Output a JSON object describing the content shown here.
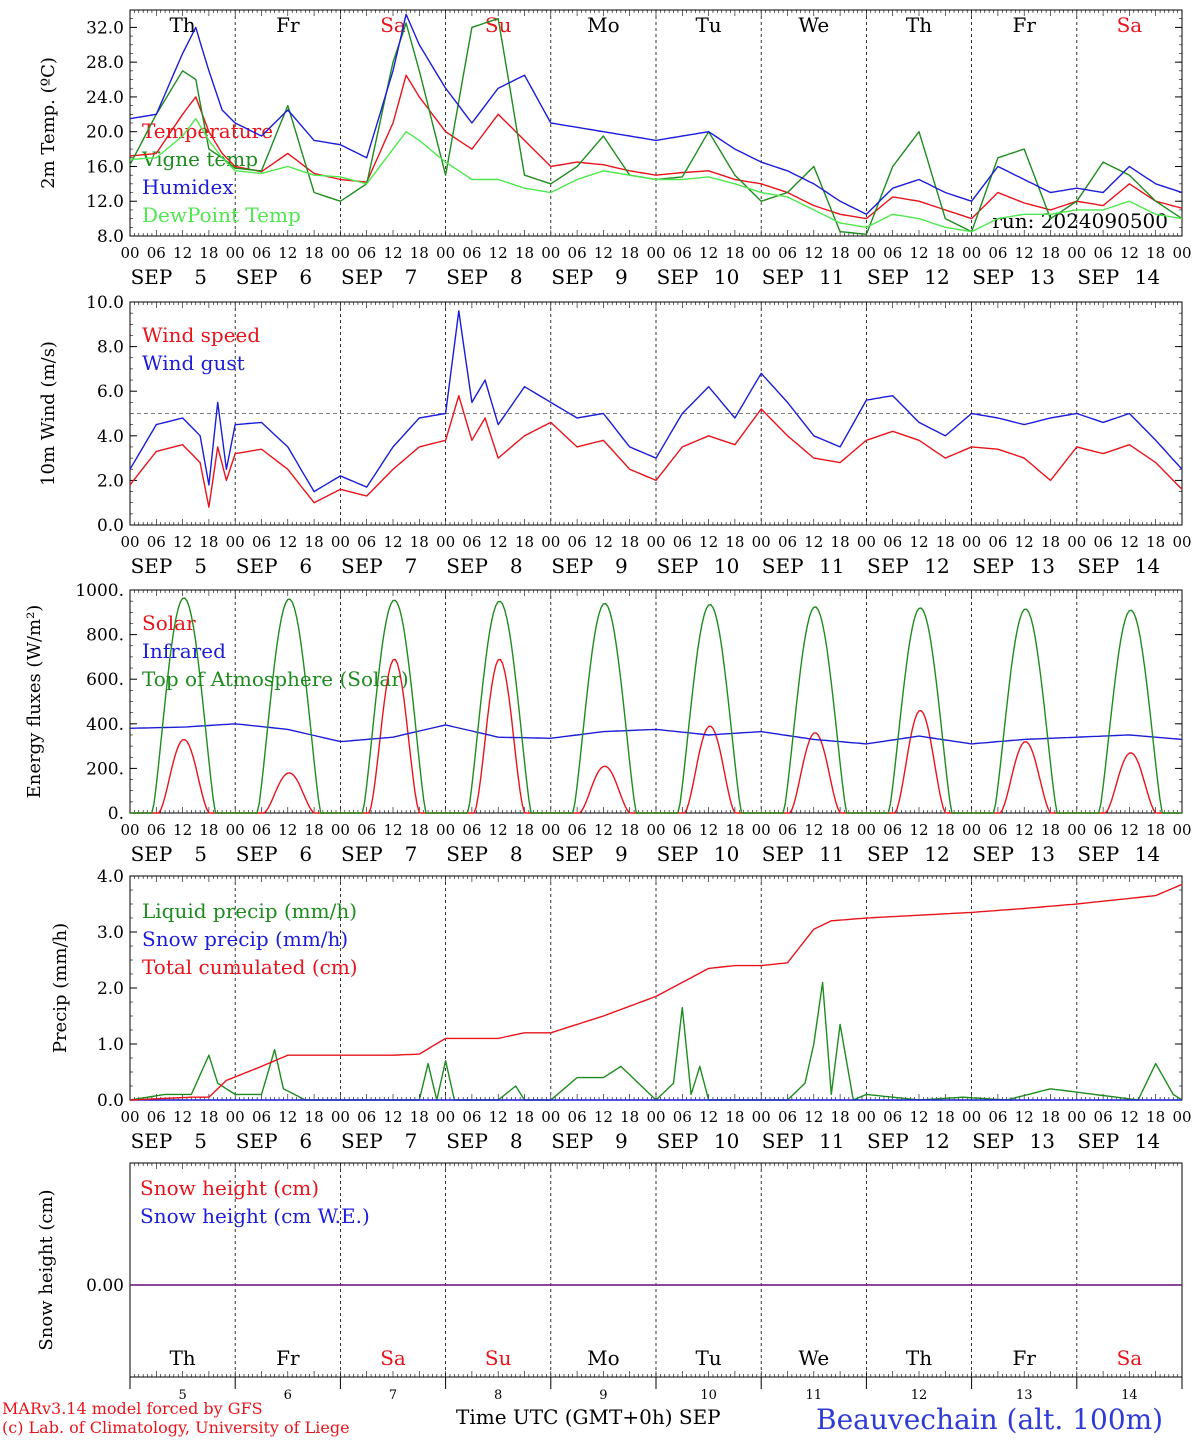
{
  "colors": {
    "red": "#e8141c",
    "green": "#1e8c1e",
    "blue": "#1c1cd9",
    "lightgreen": "#4ee84e",
    "purple": "#7a2d8c",
    "black": "#000000"
  },
  "days": [
    {
      "dow": "Th",
      "weekend": false,
      "month": "SEP",
      "date": "5"
    },
    {
      "dow": "Fr",
      "weekend": false,
      "month": "SEP",
      "date": "6"
    },
    {
      "dow": "Sa",
      "weekend": true,
      "month": "SEP",
      "date": "7"
    },
    {
      "dow": "Su",
      "weekend": true,
      "month": "SEP",
      "date": "8"
    },
    {
      "dow": "Mo",
      "weekend": false,
      "month": "SEP",
      "date": "9"
    },
    {
      "dow": "Tu",
      "weekend": false,
      "month": "SEP",
      "date": "10"
    },
    {
      "dow": "We",
      "weekend": false,
      "month": "SEP",
      "date": "11"
    },
    {
      "dow": "Th",
      "weekend": false,
      "month": "SEP",
      "date": "12"
    },
    {
      "dow": "Fr",
      "weekend": false,
      "month": "SEP",
      "date": "13"
    },
    {
      "dow": "Sa",
      "weekend": true,
      "month": "SEP",
      "date": "14"
    }
  ],
  "hour_labels": [
    "00",
    "06",
    "12",
    "18"
  ],
  "footer": {
    "model": "MARv3.14 model forced by GFS",
    "lab": "(c) Lab. of Climatology, University of Liege",
    "xlabel": "Time UTC (GMT+0h) SEP",
    "station": "Beauvechain (alt. 100m)"
  },
  "chart_data": [
    {
      "type": "line",
      "ylabel": "2m Temp. (ºC)",
      "ylim": [
        8,
        34
      ],
      "yticks": [
        "8.0",
        "12.0",
        "16.0",
        "20.0",
        "24.0",
        "28.0",
        "32.0"
      ],
      "ytick_values": [
        8,
        12,
        16,
        20,
        24,
        28,
        32
      ],
      "annotation": "run: 2024090500",
      "x_hours": [
        0,
        6,
        12,
        15,
        18,
        21,
        24,
        30,
        36,
        42,
        48,
        54,
        60,
        63,
        66,
        72,
        78,
        84,
        90,
        96,
        102,
        108,
        114,
        120,
        126,
        132,
        138,
        144,
        150,
        156,
        162,
        168,
        174,
        180,
        186,
        192,
        198,
        204,
        210,
        216,
        222,
        228,
        234,
        240
      ],
      "series": [
        {
          "name": "Temperature",
          "color": "red",
          "values": [
            17.2,
            17.5,
            22.0,
            24.0,
            20.0,
            17.5,
            16.0,
            15.4,
            17.5,
            15.2,
            14.5,
            14.2,
            21.0,
            26.5,
            24.0,
            20.0,
            18.0,
            22.0,
            19.0,
            16.0,
            16.5,
            16.2,
            15.5,
            15.0,
            15.3,
            15.5,
            14.5,
            14.0,
            13.0,
            11.5,
            10.5,
            10.0,
            12.5,
            12.0,
            11.0,
            10.0,
            13.0,
            11.8,
            11.0,
            12.0,
            11.5,
            14.0,
            12.0,
            11.2
          ]
        },
        {
          "name": "Vigne temp",
          "color": "green",
          "values": [
            16.2,
            22.0,
            27.0,
            26.0,
            18.0,
            17.0,
            15.8,
            15.5,
            23.0,
            13.0,
            12.0,
            14.0,
            28.0,
            32.5,
            27.0,
            15.0,
            32.0,
            33.0,
            15.0,
            14.0,
            16.0,
            19.5,
            15.0,
            14.5,
            14.8,
            20.0,
            15.0,
            12.0,
            13.0,
            16.0,
            8.5,
            8.2,
            16.0,
            20.0,
            10.0,
            8.5,
            17.0,
            18.0,
            10.0,
            12.0,
            16.5,
            15.0,
            12.0,
            10.0
          ]
        },
        {
          "name": "Humidex",
          "color": "blue",
          "values": [
            21.5,
            22.0,
            29.0,
            32.0,
            27.0,
            22.5,
            21.0,
            19.5,
            22.5,
            19.0,
            18.5,
            17.0,
            27.0,
            33.5,
            30.0,
            25.0,
            21.0,
            25.0,
            26.5,
            21.0,
            20.5,
            20.0,
            19.5,
            19.0,
            19.5,
            20.0,
            18.0,
            16.5,
            15.5,
            14.0,
            12.0,
            10.5,
            13.5,
            14.5,
            13.0,
            12.0,
            16.0,
            14.5,
            13.0,
            13.5,
            13.0,
            16.0,
            14.0,
            13.0
          ]
        },
        {
          "name": "DewPoint Temp",
          "color": "lightgreen",
          "values": [
            16.8,
            17.0,
            19.5,
            21.5,
            19.0,
            17.0,
            15.5,
            15.2,
            16.0,
            15.0,
            14.8,
            14.0,
            18.0,
            20.0,
            19.0,
            16.5,
            14.5,
            14.5,
            13.5,
            13.0,
            14.5,
            15.5,
            15.0,
            14.5,
            14.5,
            14.8,
            14.0,
            13.0,
            12.5,
            11.0,
            9.5,
            9.0,
            10.5,
            10.0,
            9.0,
            8.5,
            10.0,
            10.5,
            10.5,
            11.0,
            11.0,
            12.0,
            10.5,
            10.0
          ]
        }
      ]
    },
    {
      "type": "line",
      "ylabel": "10m Wind (m/s)",
      "ylim": [
        0,
        10
      ],
      "yticks": [
        "0.0",
        "2.0",
        "4.0",
        "6.0",
        "8.0",
        "10.0"
      ],
      "ytick_values": [
        0,
        2,
        4,
        6,
        8,
        10
      ],
      "reference_line": 5.0,
      "x_hours": [
        0,
        6,
        12,
        16,
        18,
        20,
        22,
        24,
        30,
        36,
        42,
        48,
        54,
        60,
        66,
        72,
        75,
        78,
        81,
        84,
        90,
        96,
        102,
        108,
        114,
        120,
        126,
        132,
        138,
        144,
        150,
        156,
        162,
        168,
        174,
        180,
        186,
        192,
        198,
        204,
        210,
        216,
        222,
        228,
        234,
        240
      ],
      "series": [
        {
          "name": "Wind speed",
          "color": "red",
          "values": [
            1.8,
            3.3,
            3.6,
            2.8,
            0.8,
            3.5,
            2.0,
            3.2,
            3.4,
            2.5,
            1.0,
            1.6,
            1.3,
            2.5,
            3.5,
            3.8,
            5.8,
            3.8,
            4.8,
            3.0,
            4.0,
            4.6,
            3.5,
            3.8,
            2.5,
            2.0,
            3.5,
            4.0,
            3.6,
            5.2,
            4.0,
            3.0,
            2.8,
            3.8,
            4.2,
            3.8,
            3.0,
            3.5,
            3.4,
            3.0,
            2.0,
            3.5,
            3.2,
            3.6,
            2.8,
            1.6
          ]
        },
        {
          "name": "Wind gust",
          "color": "blue",
          "values": [
            2.5,
            4.5,
            4.8,
            4.0,
            1.8,
            5.5,
            2.5,
            4.5,
            4.6,
            3.5,
            1.5,
            2.2,
            1.7,
            3.5,
            4.8,
            5.0,
            9.6,
            5.5,
            6.5,
            4.5,
            6.2,
            5.5,
            4.8,
            5.0,
            3.5,
            3.0,
            5.0,
            6.2,
            4.8,
            6.8,
            5.5,
            4.0,
            3.5,
            5.6,
            5.8,
            4.6,
            4.0,
            5.0,
            4.8,
            4.5,
            4.8,
            5.0,
            4.6,
            5.0,
            3.8,
            2.5
          ]
        }
      ]
    },
    {
      "type": "line",
      "ylabel": "Energy fluxes (W/m²)",
      "ylim": [
        0,
        1000
      ],
      "yticks": [
        "0.",
        "200.",
        "400.",
        "600.",
        "800.",
        "1000."
      ],
      "ytick_values": [
        0,
        200,
        400,
        600,
        800,
        1000
      ],
      "series": [
        {
          "name": "Solar",
          "color": "red",
          "peaks": [
            330,
            180,
            690,
            690,
            210,
            390,
            360,
            460,
            320,
            270
          ]
        },
        {
          "name": "Infrared",
          "color": "blue",
          "x_hours": [
            0,
            12,
            24,
            36,
            48,
            60,
            72,
            84,
            96,
            108,
            120,
            132,
            144,
            156,
            168,
            180,
            192,
            204,
            216,
            228,
            240
          ],
          "values": [
            380,
            385,
            400,
            375,
            320,
            340,
            395,
            340,
            335,
            365,
            375,
            350,
            365,
            330,
            310,
            345,
            310,
            330,
            340,
            350,
            330
          ]
        },
        {
          "name": "Top of Atmosphere (Solar)",
          "color": "green",
          "peaks": [
            965,
            960,
            955,
            950,
            940,
            935,
            925,
            920,
            915,
            910
          ]
        }
      ]
    },
    {
      "type": "line",
      "ylabel": "Precip (mm/h)",
      "ylim": [
        0,
        4
      ],
      "yticks": [
        "0.0",
        "1.0",
        "2.0",
        "3.0",
        "4.0"
      ],
      "ytick_values": [
        0,
        1,
        2,
        3,
        4
      ],
      "series": [
        {
          "name": "Liquid precip (mm/h)",
          "color": "green",
          "x_hours": [
            0,
            8,
            14,
            18,
            20,
            24,
            30,
            33,
            35,
            40,
            48,
            66,
            68,
            70,
            72,
            74,
            76,
            84,
            88,
            90,
            96,
            102,
            108,
            112,
            116,
            120,
            124,
            126,
            128,
            130,
            132,
            134,
            136,
            140,
            150,
            154,
            156,
            158,
            160,
            162,
            165,
            168,
            180,
            190,
            200,
            210,
            220,
            230,
            234,
            238,
            240
          ],
          "values": [
            0.0,
            0.1,
            0.1,
            0.8,
            0.3,
            0.1,
            0.1,
            0.9,
            0.2,
            0.0,
            0.0,
            0.0,
            0.65,
            0.0,
            0.7,
            0.0,
            0.0,
            0.0,
            0.25,
            0.0,
            0.0,
            0.4,
            0.4,
            0.6,
            0.3,
            0.0,
            0.3,
            1.65,
            0.1,
            0.6,
            0.0,
            0.0,
            0.0,
            0.0,
            0.0,
            0.3,
            1.0,
            2.1,
            0.1,
            1.35,
            0.0,
            0.1,
            0.0,
            0.05,
            0.0,
            0.2,
            0.1,
            0.0,
            0.65,
            0.1,
            0.0
          ]
        },
        {
          "name": "Snow precip (mm/h)",
          "color": "blue",
          "x_hours": [
            0,
            240
          ],
          "values": [
            0.0,
            0.0
          ]
        },
        {
          "name": "Total cumulated (cm)",
          "color": "red",
          "x_hours": [
            0,
            14,
            18,
            22,
            30,
            36,
            48,
            60,
            66,
            72,
            84,
            90,
            96,
            108,
            120,
            126,
            132,
            138,
            144,
            150,
            156,
            160,
            168,
            180,
            192,
            204,
            216,
            228,
            234,
            240
          ],
          "values": [
            0.0,
            0.05,
            0.05,
            0.35,
            0.6,
            0.8,
            0.8,
            0.8,
            0.82,
            1.1,
            1.1,
            1.2,
            1.2,
            1.5,
            1.85,
            2.1,
            2.35,
            2.4,
            2.4,
            2.45,
            3.05,
            3.2,
            3.25,
            3.3,
            3.35,
            3.42,
            3.5,
            3.6,
            3.65,
            3.85
          ]
        }
      ]
    },
    {
      "type": "line",
      "ylabel": "Snow height (cm)",
      "yticks": [
        "0.00"
      ],
      "ytick_values": [
        0
      ],
      "series": [
        {
          "name": "Snow height (cm)",
          "color": "red",
          "x_hours": [
            0,
            240
          ],
          "values": [
            0,
            0
          ]
        },
        {
          "name": "Snow height (cm W.E.)",
          "color": "blue",
          "x_hours": [
            0,
            240
          ],
          "values": [
            0,
            0
          ]
        }
      ]
    }
  ]
}
